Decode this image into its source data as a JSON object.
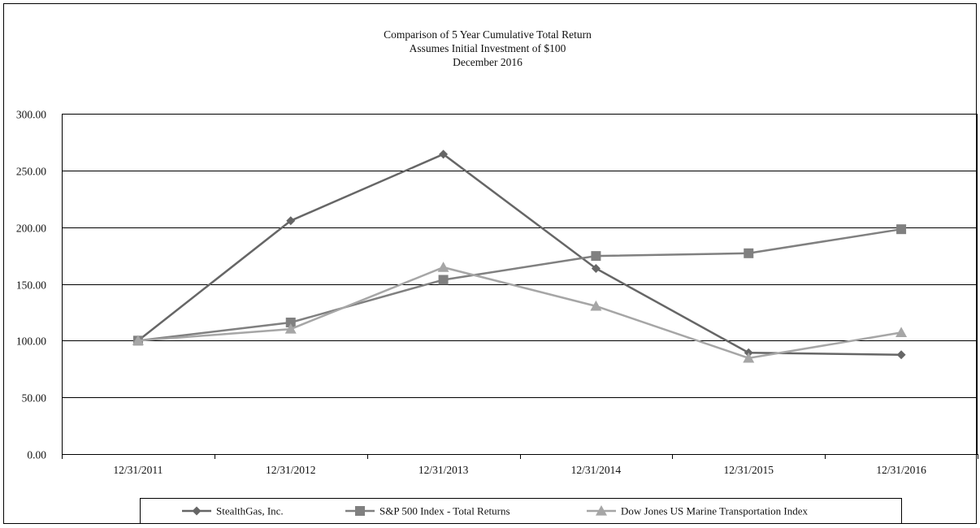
{
  "chart_data": {
    "type": "line",
    "title": [
      "Comparison of 5 Year Cumulative Total Return",
      "Assumes Initial Investment of $100",
      "December 2016"
    ],
    "categories": [
      "12/31/2011",
      "12/31/2012",
      "12/31/2013",
      "12/31/2014",
      "12/31/2015",
      "12/31/2016"
    ],
    "y_tick_labels": [
      "0.00",
      "50.00",
      "100.00",
      "150.00",
      "200.00",
      "250.00",
      "300.00"
    ],
    "ylim": [
      0,
      300
    ],
    "grid": "horizontal",
    "legend_position": "bottom",
    "series": [
      {
        "name": "StealthGas, Inc.",
        "marker": "diamond",
        "color": "#666666",
        "values": [
          100.0,
          205.7,
          264.3,
          163.6,
          89.3,
          87.5
        ]
      },
      {
        "name": "S&P 500 Index - Total Returns",
        "marker": "square",
        "color": "#808080",
        "values": [
          100.0,
          116.0,
          153.6,
          174.6,
          177.0,
          198.2
        ]
      },
      {
        "name": "Dow Jones US Marine Transportation Index",
        "marker": "triangle",
        "color": "#a6a6a6",
        "values": [
          100.0,
          110.2,
          164.6,
          130.4,
          84.6,
          107.1
        ]
      }
    ]
  }
}
